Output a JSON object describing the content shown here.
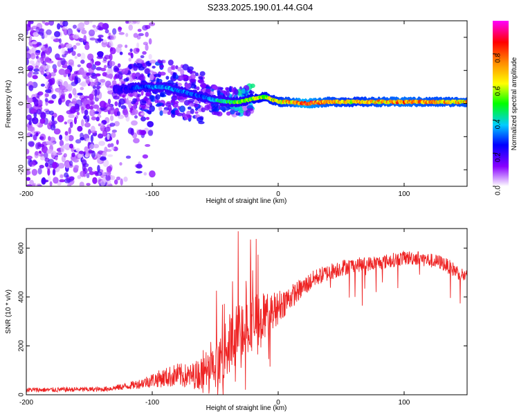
{
  "title": "S233.2025.190.01.44.G04",
  "colors": {
    "snr_line": "#ee2222",
    "axis": "#000000",
    "colorbar_stops": [
      "#ffffff",
      "#8800ff",
      "#0000ff",
      "#00ccff",
      "#00ff00",
      "#ffff00",
      "#ff8800",
      "#ff0000",
      "#ff00ff"
    ]
  },
  "chart_data": [
    {
      "type": "heatmap",
      "title": "S233.2025.190.01.44.G04",
      "xlabel": "Height of straight line (km)",
      "ylabel": "Frequency (Hz)",
      "xlim": [
        -200,
        150
      ],
      "ylim": [
        -25,
        25
      ],
      "xticks": [
        -200,
        -100,
        0,
        100
      ],
      "yticks": [
        20,
        10,
        0,
        -10,
        -20
      ],
      "xtick_labels": [
        "-200",
        "-100",
        "0",
        "100"
      ],
      "ytick_labels": [
        "20",
        "10",
        "0",
        "-10",
        "-20"
      ],
      "colorbar": {
        "label": "Normalized spectral amplitude",
        "range": [
          0.0,
          1.0
        ],
        "ticks": [
          0.0,
          0.2,
          0.4,
          0.6,
          0.8
        ],
        "tick_labels": [
          "0.0",
          "0.2",
          "0.4",
          "0.6",
          "0.8"
        ],
        "colormap": "rainbow (white-purple-blue-cyan-green-yellow-orange-red-magenta)"
      },
      "ridge": {
        "description": "Frequency ridge of peak amplitude vs height",
        "x": [
          -130,
          -110,
          -100,
          -90,
          -80,
          -70,
          -60,
          -50,
          -40,
          -30,
          -20,
          -10,
          0,
          10,
          20,
          40,
          60,
          80,
          100,
          120,
          150
        ],
        "freq": [
          4,
          5,
          5,
          5,
          4,
          3,
          2,
          1,
          0.5,
          0.5,
          1.5,
          2,
          0.5,
          0.5,
          0,
          0.5,
          0.5,
          0.5,
          0.5,
          0.5,
          0.5
        ],
        "amplitude": [
          0.2,
          0.3,
          0.35,
          0.35,
          0.35,
          0.3,
          0.3,
          0.4,
          0.5,
          0.55,
          0.6,
          0.65,
          0.7,
          0.75,
          0.9,
          0.75,
          0.7,
          0.75,
          0.8,
          0.75,
          0.75
        ]
      },
      "noise_region": {
        "x_range": [
          -200,
          -110
        ],
        "amplitude": 0.08
      }
    },
    {
      "type": "line",
      "xlabel": "Height of straight line (km)",
      "ylabel": "SNR (10 * v/v)",
      "xlim": [
        -200,
        150
      ],
      "ylim": [
        0,
        680
      ],
      "xticks": [
        -200,
        -100,
        0,
        100
      ],
      "yticks": [
        0,
        200,
        400,
        600
      ],
      "xtick_labels": [
        "-200",
        "-100",
        "0",
        "100"
      ],
      "ytick_labels": [
        "0",
        "200",
        "400",
        "600"
      ],
      "series": [
        {
          "x": [
            -200,
            -180,
            -160,
            -140,
            -130,
            -120,
            -110,
            -100,
            -90,
            -80,
            -70,
            -60,
            -50,
            -45,
            -40,
            -35,
            -30,
            -25,
            -20,
            -15,
            -10,
            -5,
            0,
            5,
            10,
            15,
            20,
            25,
            30,
            40,
            50,
            60,
            70,
            80,
            90,
            100,
            110,
            120,
            130,
            140,
            150
          ],
          "y": [
            20,
            20,
            22,
            22,
            28,
            35,
            45,
            60,
            70,
            80,
            75,
            90,
            110,
            150,
            200,
            230,
            260,
            290,
            300,
            310,
            320,
            340,
            360,
            380,
            400,
            420,
            440,
            460,
            480,
            500,
            520,
            530,
            535,
            540,
            550,
            560,
            560,
            550,
            540,
            510,
            480
          ],
          "noise_amplitude": [
            10,
            10,
            10,
            10,
            12,
            15,
            20,
            30,
            40,
            50,
            50,
            70,
            80,
            100,
            120,
            130,
            130,
            130,
            120,
            110,
            100,
            80,
            70,
            60,
            50,
            45,
            40,
            40,
            35,
            35,
            35,
            30,
            30,
            30,
            30,
            30,
            30,
            30,
            30,
            30,
            30
          ]
        }
      ]
    }
  ]
}
